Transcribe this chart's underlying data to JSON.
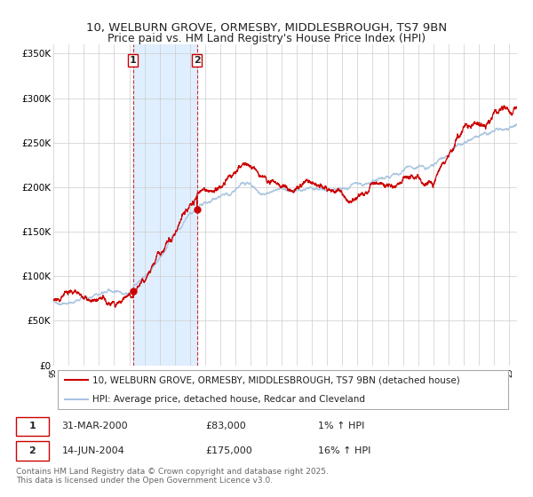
{
  "title_line1": "10, WELBURN GROVE, ORMESBY, MIDDLESBROUGH, TS7 9BN",
  "title_line2": "Price paid vs. HM Land Registry's House Price Index (HPI)",
  "legend_line1": "10, WELBURN GROVE, ORMESBY, MIDDLESBROUGH, TS7 9BN (detached house)",
  "legend_line2": "HPI: Average price, detached house, Redcar and Cleveland",
  "transaction1_label": "1",
  "transaction1_date": "31-MAR-2000",
  "transaction1_price": "£83,000",
  "transaction1_hpi": "1% ↑ HPI",
  "transaction1_year": 2000.25,
  "transaction1_value": 83000,
  "transaction2_label": "2",
  "transaction2_date": "14-JUN-2004",
  "transaction2_price": "£175,000",
  "transaction2_hpi": "16% ↑ HPI",
  "transaction2_year": 2004.45,
  "transaction2_value": 175000,
  "hpi_color": "#a8c4e0",
  "price_color": "#cc0000",
  "marker_color": "#cc0000",
  "shade_color": "#ddeeff",
  "dashed_line_color": "#cc0000",
  "grid_color": "#cccccc",
  "background_color": "#ffffff",
  "ylim": [
    0,
    360000
  ],
  "yticks": [
    0,
    50000,
    100000,
    150000,
    200000,
    250000,
    300000,
    350000
  ],
  "ytick_labels": [
    "£0",
    "£50K",
    "£100K",
    "£150K",
    "£200K",
    "£250K",
    "£300K",
    "£350K"
  ],
  "xmin": 1995.0,
  "xmax": 2025.5,
  "footer": "Contains HM Land Registry data © Crown copyright and database right 2025.\nThis data is licensed under the Open Government Licence v3.0.",
  "title_fontsize": 9.5,
  "axis_fontsize": 7.5,
  "legend_fontsize": 7.5
}
